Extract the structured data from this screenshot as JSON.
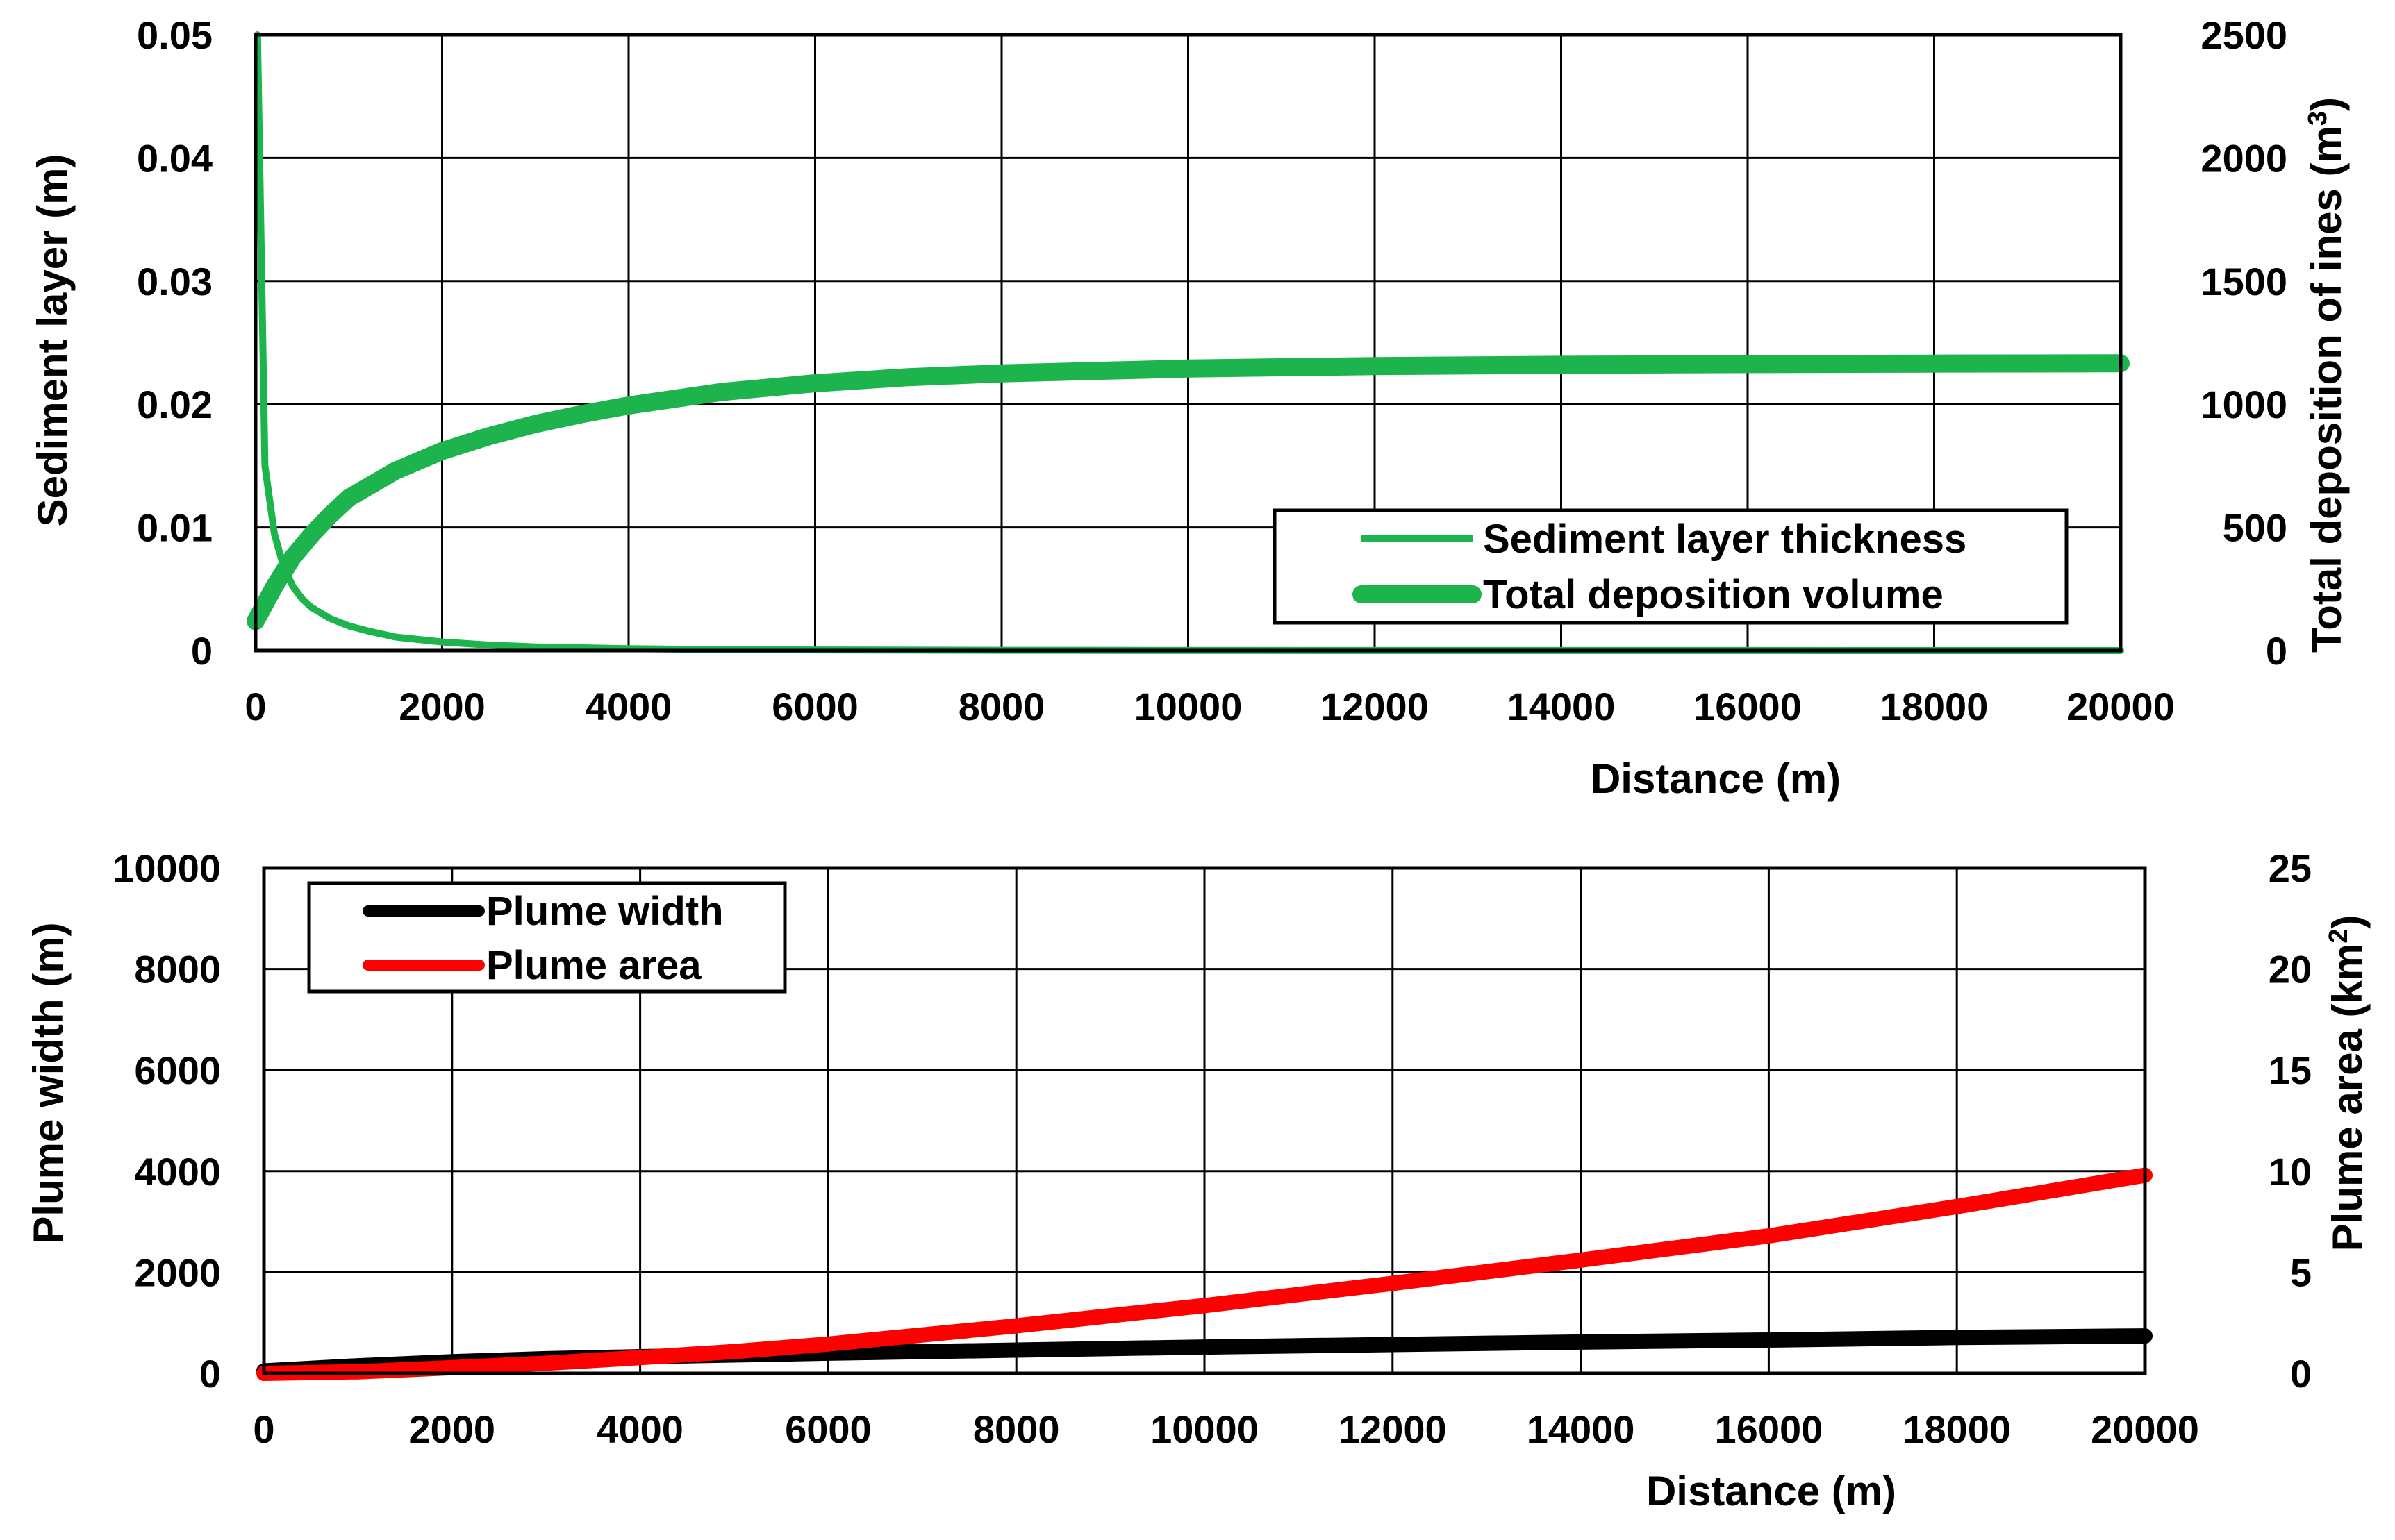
{
  "colors": {
    "green": "#1db34d",
    "black": "#000000",
    "red": "#ff0000"
  },
  "chart_data": [
    {
      "type": "line",
      "xlabel": "Distance (m)",
      "ylabel": "Sediment layer (m)",
      "y2label_main": "Total deposition of ines (m",
      "y2label_sup": "3",
      "y2label_end": ")",
      "xlim": [
        0,
        20000
      ],
      "ylim": [
        0,
        0.05
      ],
      "y2lim": [
        0,
        2500
      ],
      "xticks": [
        "0",
        "2000",
        "4000",
        "6000",
        "8000",
        "10000",
        "12000",
        "14000",
        "16000",
        "18000",
        "20000"
      ],
      "yticks": [
        "0",
        "0.01",
        "0.02",
        "0.03",
        "0.04",
        "0.05"
      ],
      "y2ticks": [
        "0",
        "500",
        "1000",
        "1500",
        "2000",
        "2500"
      ],
      "grid": true,
      "legend_position": "lower-right",
      "series": [
        {
          "name": "Sediment layer thickness",
          "axis": "left",
          "color": "#1db34d",
          "x": [
            20,
            100,
            200,
            300,
            400,
            500,
            600,
            800,
            1000,
            1200,
            1500,
            2000,
            2500,
            3000,
            4000,
            5000,
            6000,
            8000,
            10000,
            15000,
            20000
          ],
          "y": [
            0.05,
            0.015,
            0.0095,
            0.0068,
            0.0052,
            0.0042,
            0.0035,
            0.0026,
            0.002,
            0.0016,
            0.0011,
            0.0007,
            0.00045,
            0.0003,
            0.00015,
            8e-05,
            5e-05,
            2e-05,
            1e-05,
            5e-06,
            0.0
          ]
        },
        {
          "name": "Total deposition volume",
          "axis": "right",
          "color": "#1db34d",
          "x": [
            0,
            200,
            400,
            600,
            800,
            1000,
            1500,
            2000,
            2500,
            3000,
            3500,
            4000,
            5000,
            6000,
            7000,
            8000,
            9000,
            10000,
            12000,
            14000,
            16000,
            18000,
            20000
          ],
          "y": [
            120,
            260,
            380,
            470,
            550,
            620,
            730,
            810,
            870,
            920,
            960,
            995,
            1050,
            1085,
            1110,
            1125,
            1135,
            1145,
            1155,
            1160,
            1163,
            1165,
            1166
          ]
        }
      ]
    },
    {
      "type": "line",
      "xlabel": "Distance (m)",
      "ylabel": "Plume width (m)",
      "y2label_main": "Plume area (km",
      "y2label_sup": "2",
      "y2label_end": ")",
      "xlim": [
        0,
        20000
      ],
      "ylim": [
        0,
        10000
      ],
      "y2lim": [
        0,
        25
      ],
      "xticks": [
        "0",
        "2000",
        "4000",
        "6000",
        "8000",
        "10000",
        "12000",
        "14000",
        "16000",
        "18000",
        "20000"
      ],
      "yticks": [
        "0",
        "2000",
        "4000",
        "6000",
        "8000",
        "10000"
      ],
      "y2ticks": [
        "0",
        "5",
        "10",
        "15",
        "20",
        "25"
      ],
      "grid": true,
      "legend_position": "upper-left",
      "series": [
        {
          "name": "Plume width",
          "axis": "left",
          "color": "#000000",
          "x": [
            0,
            1000,
            2000,
            3000,
            4000,
            6000,
            8000,
            10000,
            12000,
            14000,
            16000,
            18000,
            20000
          ],
          "y": [
            50,
            150,
            230,
            290,
            330,
            400,
            460,
            520,
            570,
            620,
            660,
            710,
            740
          ]
        },
        {
          "name": "Plume area",
          "axis": "right",
          "color": "#ff0000",
          "x": [
            0,
            1000,
            2000,
            3000,
            4000,
            5000,
            6000,
            8000,
            10000,
            12000,
            14000,
            16000,
            18000,
            20000
          ],
          "y": [
            0,
            0.08,
            0.28,
            0.5,
            0.78,
            1.08,
            1.45,
            2.35,
            3.35,
            4.45,
            5.6,
            6.8,
            8.25,
            9.8
          ]
        }
      ]
    }
  ]
}
